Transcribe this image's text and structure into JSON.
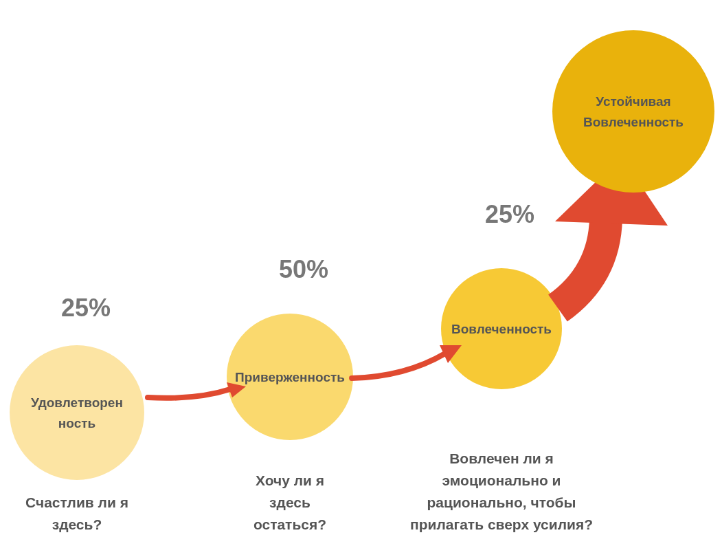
{
  "chart_data": {
    "type": "other",
    "categories": [
      "Удовлетворен\nность",
      "Приверженность",
      "Вовлеченность",
      "Устойчивая\nВовлеченность"
    ],
    "values": [
      25,
      50,
      25,
      null
    ],
    "value_labels": [
      "25%",
      "50%",
      "25%",
      null
    ],
    "colors": [
      "#fce4a3",
      "#fad96e",
      "#f7c935",
      "#e9b20c"
    ],
    "annotations": [
      "Счастлив ли я\nздесь?",
      "Хочу ли я\nздесь\nостаться?",
      "Вовлечен ли я\nэмоционально и\nрационально, чтобы\nприлагать сверх усилия?"
    ]
  }
}
